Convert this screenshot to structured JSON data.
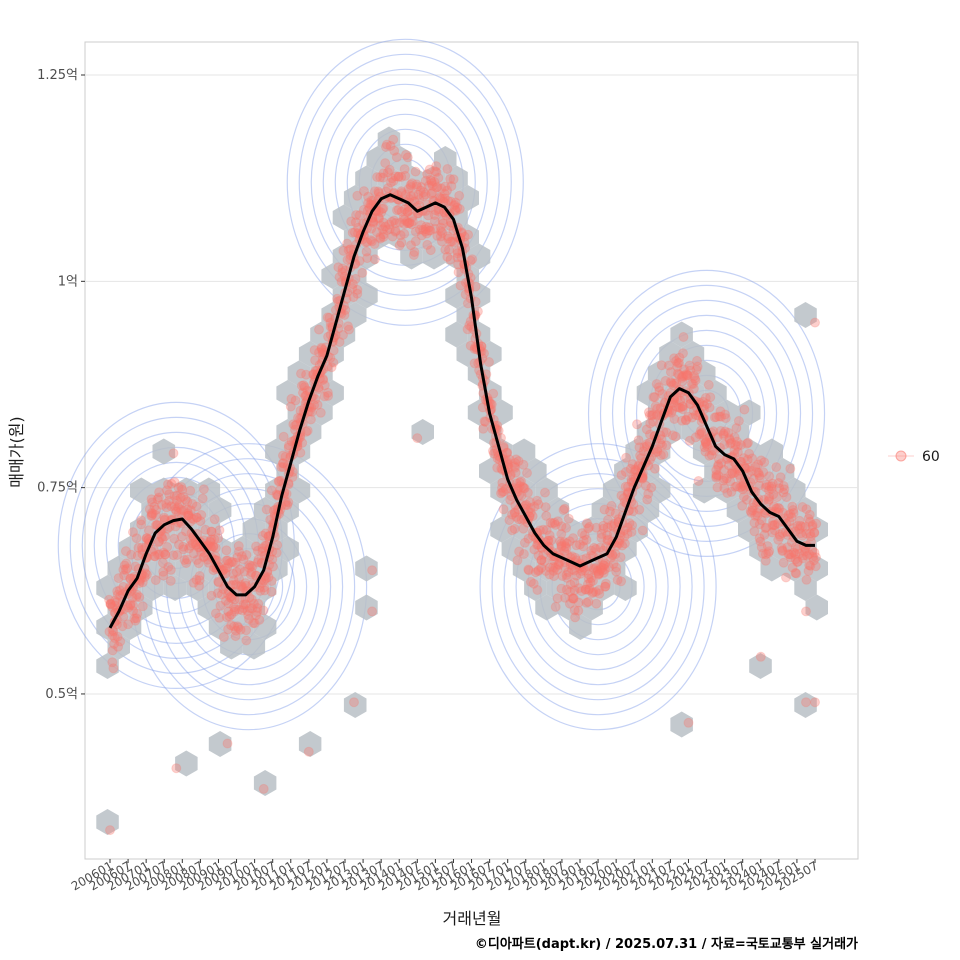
{
  "chart_data": {
    "type": "scatter",
    "title": "",
    "xlabel": "거래년월",
    "ylabel": "매매가(원)",
    "y_unit": "억",
    "ylim": [
      0.3,
      1.29
    ],
    "yticks": [
      0.5,
      0.75,
      1.0,
      1.25
    ],
    "ytick_labels": [
      "0.5억",
      "0.75억",
      "1억",
      "1.25억"
    ],
    "x_range": [
      "200601",
      "202507"
    ],
    "xtick_labels": [
      "200601",
      "200607",
      "200701",
      "200707",
      "200801",
      "200807",
      "200901",
      "200907",
      "201001",
      "201007",
      "201101",
      "201107",
      "201201",
      "201207",
      "201301",
      "201307",
      "201401",
      "201407",
      "201501",
      "201507",
      "201601",
      "201607",
      "201701",
      "201707",
      "201801",
      "201807",
      "201901",
      "201907",
      "202001",
      "202007",
      "202101",
      "202107",
      "202201",
      "202207",
      "202301",
      "202307",
      "202401",
      "202407",
      "202501",
      "202507"
    ],
    "legend": {
      "title": "",
      "entries": [
        "60"
      ],
      "position": "right"
    },
    "caption": "©디아파트(dapt.kr) / 2025.07.31 / 자료=국토교통부 실거래가",
    "colors": {
      "points": "#f8766d",
      "trend": "#000000",
      "hex": "#b8bfc6",
      "contour": "#7f9ce8",
      "grid": "#e5e5e5",
      "panel_border": "#cccccc"
    },
    "layers": [
      "hexbin",
      "density-contour",
      "scatter",
      "moving-average"
    ],
    "trend_series": {
      "name": "moving-average",
      "x": [
        "200601",
        "200604",
        "200607",
        "200610",
        "200701",
        "200704",
        "200707",
        "200710",
        "200801",
        "200804",
        "200807",
        "200810",
        "200901",
        "200904",
        "200907",
        "200910",
        "201001",
        "201004",
        "201007",
        "201010",
        "201101",
        "201104",
        "201107",
        "201110",
        "201201",
        "201204",
        "201207",
        "201210",
        "201301",
        "201304",
        "201307",
        "201310",
        "201401",
        "201404",
        "201407",
        "201410",
        "201501",
        "201504",
        "201507",
        "201510",
        "201601",
        "201604",
        "201607",
        "201610",
        "201701",
        "201704",
        "201707",
        "201710",
        "201801",
        "201804",
        "201807",
        "201810",
        "201901",
        "201904",
        "201907",
        "201910",
        "202001",
        "202004",
        "202007",
        "202010",
        "202101",
        "202104",
        "202107",
        "202110",
        "202201",
        "202204",
        "202207",
        "202210",
        "202301",
        "202304",
        "202307",
        "202310",
        "202401",
        "202404",
        "202407",
        "202410",
        "202501",
        "202504",
        "202507"
      ],
      "y": [
        0.58,
        0.6,
        0.625,
        0.64,
        0.67,
        0.695,
        0.705,
        0.71,
        0.712,
        0.7,
        0.685,
        0.67,
        0.65,
        0.63,
        0.62,
        0.62,
        0.63,
        0.65,
        0.69,
        0.74,
        0.78,
        0.82,
        0.855,
        0.885,
        0.91,
        0.95,
        0.99,
        1.03,
        1.06,
        1.085,
        1.1,
        1.105,
        1.1,
        1.095,
        1.085,
        1.09,
        1.095,
        1.09,
        1.075,
        1.04,
        0.98,
        0.9,
        0.84,
        0.8,
        0.76,
        0.735,
        0.715,
        0.695,
        0.68,
        0.67,
        0.665,
        0.66,
        0.655,
        0.66,
        0.665,
        0.67,
        0.69,
        0.72,
        0.75,
        0.775,
        0.8,
        0.83,
        0.86,
        0.87,
        0.865,
        0.85,
        0.825,
        0.8,
        0.79,
        0.785,
        0.77,
        0.745,
        0.73,
        0.72,
        0.715,
        0.7,
        0.685,
        0.68,
        0.68
      ]
    },
    "density_peaks": [
      {
        "x": "200711",
        "y": 0.68
      },
      {
        "x": "200911",
        "y": 0.63
      },
      {
        "x": "201403",
        "y": 1.12
      },
      {
        "x": "201907",
        "y": 0.63
      },
      {
        "x": "202207",
        "y": 0.84
      }
    ]
  }
}
